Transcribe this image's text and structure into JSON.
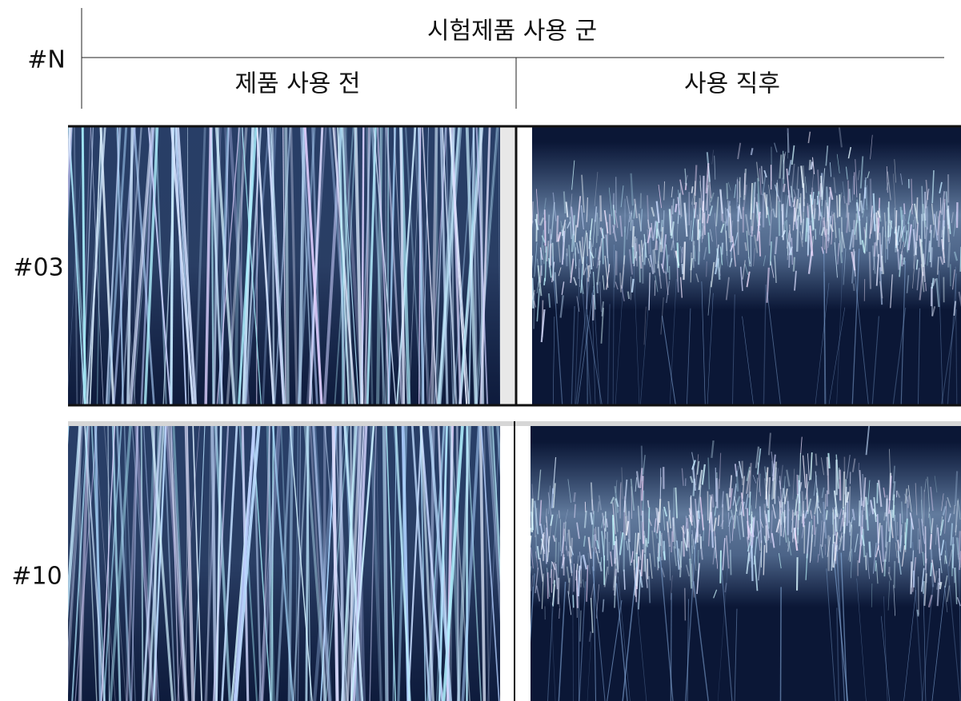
{
  "header": {
    "row_label": "#N",
    "group": "시험제품 사용 군",
    "columns": [
      "제품 사용 전",
      "사용 직후"
    ]
  },
  "rows": [
    {
      "label": "#03"
    },
    {
      "label": "#10"
    }
  ]
}
